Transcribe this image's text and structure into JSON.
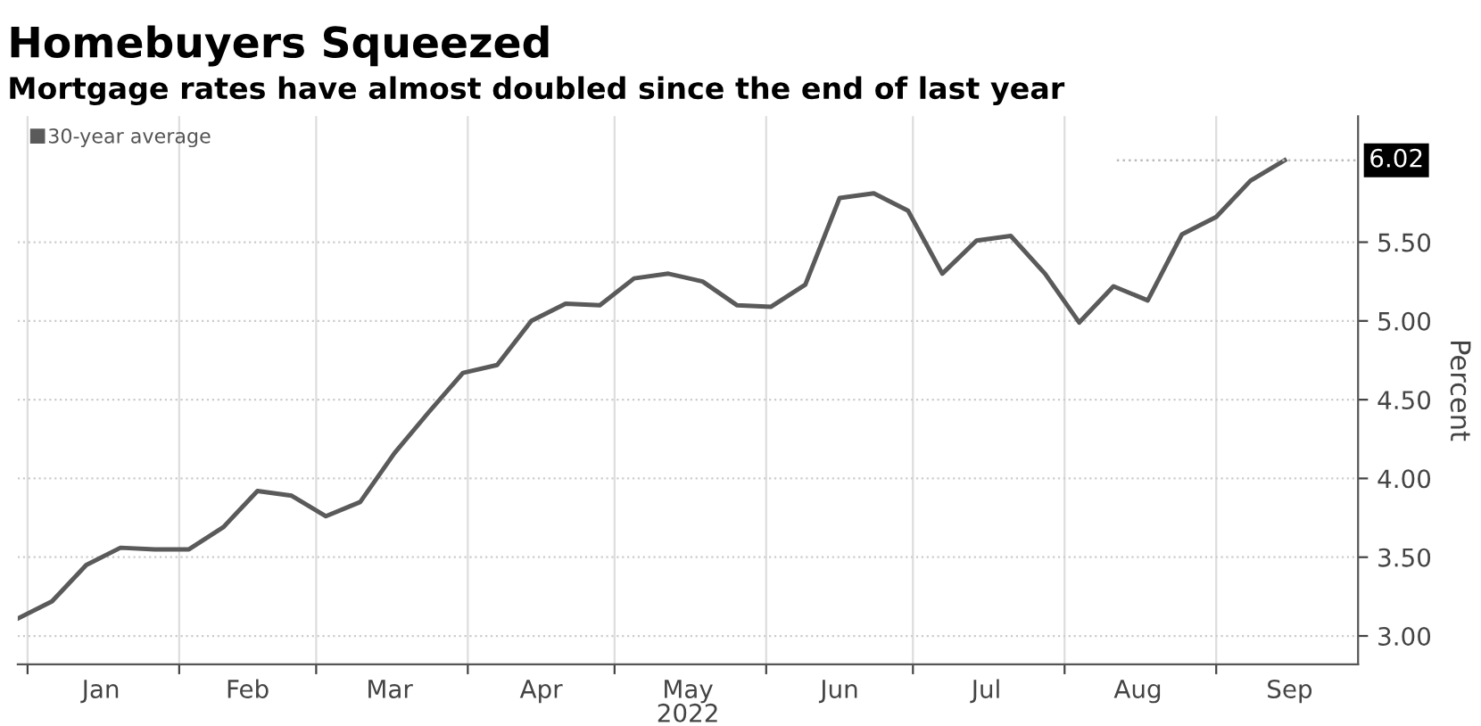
{
  "chart_data": {
    "type": "line",
    "title": "Homebuyers Squeezed",
    "subtitle": "Mortgage rates have almost doubled since the end of last year",
    "xlabel": "2022",
    "ylabel": "Percent",
    "x": [
      "2021-12-30",
      "2022-01-06",
      "2022-01-13",
      "2022-01-20",
      "2022-01-27",
      "2022-02-03",
      "2022-02-10",
      "2022-02-17",
      "2022-02-24",
      "2022-03-03",
      "2022-03-10",
      "2022-03-17",
      "2022-03-24",
      "2022-03-31",
      "2022-04-07",
      "2022-04-14",
      "2022-04-21",
      "2022-04-28",
      "2022-05-05",
      "2022-05-12",
      "2022-05-19",
      "2022-05-26",
      "2022-06-02",
      "2022-06-09",
      "2022-06-16",
      "2022-06-23",
      "2022-06-30",
      "2022-07-07",
      "2022-07-14",
      "2022-07-21",
      "2022-07-28",
      "2022-08-04",
      "2022-08-11",
      "2022-08-18",
      "2022-08-25",
      "2022-09-01",
      "2022-09-08",
      "2022-09-15"
    ],
    "series": [
      {
        "name": "30-year average",
        "color": "#5a5a5a",
        "values": [
          3.11,
          3.22,
          3.45,
          3.56,
          3.55,
          3.55,
          3.69,
          3.92,
          3.89,
          3.76,
          3.85,
          4.16,
          4.42,
          4.67,
          4.72,
          5.0,
          5.11,
          5.1,
          5.27,
          5.3,
          5.25,
          5.1,
          5.09,
          5.23,
          5.78,
          5.81,
          5.7,
          5.3,
          5.51,
          5.54,
          5.3,
          4.99,
          5.22,
          5.13,
          5.55,
          5.66,
          5.89,
          6.02
        ]
      }
    ],
    "xlim": [
      "2021-12-30",
      "2022-09-30"
    ],
    "xticks": [
      {
        "value": "2022-01-01",
        "label": null
      },
      {
        "value": "2022-01-16",
        "label": "Jan"
      },
      {
        "value": "2022-02-01",
        "label": null
      },
      {
        "value": "2022-02-15",
        "label": "Feb"
      },
      {
        "value": "2022-03-01",
        "label": null
      },
      {
        "value": "2022-03-16",
        "label": "Mar"
      },
      {
        "value": "2022-04-01",
        "label": null
      },
      {
        "value": "2022-04-16",
        "label": "Apr"
      },
      {
        "value": "2022-05-01",
        "label": null
      },
      {
        "value": "2022-05-16",
        "label": "May"
      },
      {
        "value": "2022-06-01",
        "label": null
      },
      {
        "value": "2022-06-16",
        "label": "Jun"
      },
      {
        "value": "2022-07-01",
        "label": null
      },
      {
        "value": "2022-07-16",
        "label": "Jul"
      },
      {
        "value": "2022-08-01",
        "label": null
      },
      {
        "value": "2022-08-16",
        "label": "Aug"
      },
      {
        "value": "2022-09-01",
        "label": null
      },
      {
        "value": "2022-09-16",
        "label": "Sep"
      }
    ],
    "ylim": [
      2.82,
      6.3
    ],
    "yticks": [
      {
        "value": 3.0,
        "label": "3.00"
      },
      {
        "value": 3.5,
        "label": "3.50"
      },
      {
        "value": 4.0,
        "label": "4.00"
      },
      {
        "value": 4.5,
        "label": "4.50"
      },
      {
        "value": 5.0,
        "label": "5.00"
      },
      {
        "value": 5.5,
        "label": "5.50"
      }
    ],
    "ref_lines": [
      {
        "axis": "y",
        "value": 6.02,
        "label": "6.02",
        "line_style": "dotted"
      }
    ],
    "grid": true,
    "legend": "top left",
    "marker": "none",
    "line_style": "solid"
  }
}
